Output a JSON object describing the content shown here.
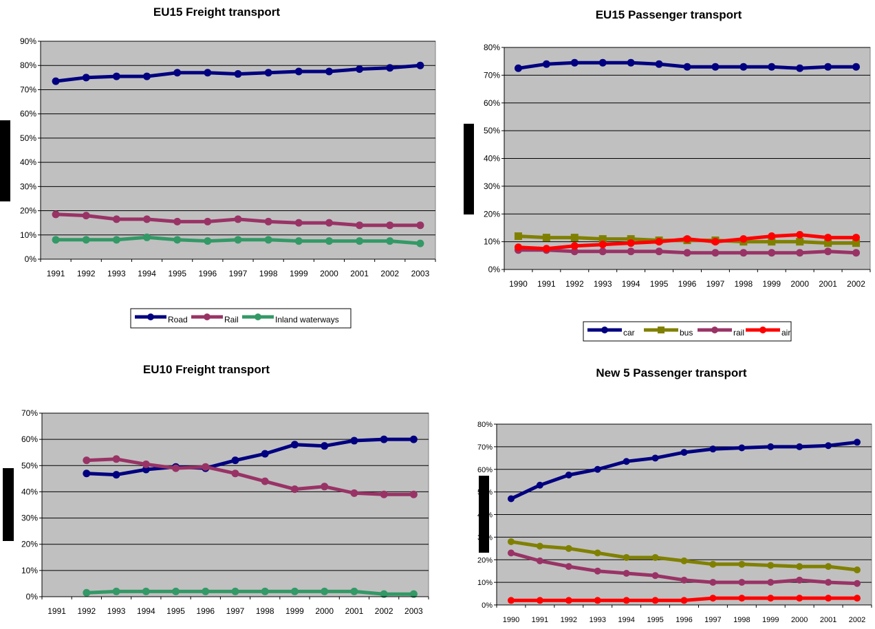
{
  "chart_data": [
    {
      "type": "line",
      "title": "EU15 Freight transport",
      "xlabel": "",
      "ylabel": "",
      "x": [
        "1991",
        "1992",
        "1993",
        "1994",
        "1995",
        "1996",
        "1997",
        "1998",
        "1999",
        "2000",
        "2001",
        "2002",
        "2003"
      ],
      "yticks": [
        "0%",
        "10%",
        "20%",
        "30%",
        "40%",
        "50%",
        "60%",
        "70%",
        "80%",
        "90%"
      ],
      "ylim": [
        0,
        90
      ],
      "grid": true,
      "legend": "bottom",
      "series": [
        {
          "name": "Road",
          "color": "#000080",
          "marker": "circle",
          "values": [
            73.5,
            75,
            75.5,
            75.5,
            77,
            77,
            76.5,
            77,
            77.5,
            77.5,
            78.5,
            79,
            80
          ]
        },
        {
          "name": "Rail",
          "color": "#993366",
          "marker": "circle",
          "values": [
            18.5,
            18,
            16.5,
            16.5,
            15.5,
            15.5,
            16.5,
            15.5,
            15,
            15,
            14,
            14,
            14
          ]
        },
        {
          "name": "Inland waterways",
          "color": "#339966",
          "marker": "circle",
          "values": [
            8,
            8,
            8,
            9,
            8,
            7.5,
            8,
            8,
            7.5,
            7.5,
            7.5,
            7.5,
            6.5
          ]
        }
      ]
    },
    {
      "type": "line",
      "title": "EU15 Passenger transport",
      "xlabel": "",
      "ylabel": "",
      "x": [
        "1990",
        "1991",
        "1992",
        "1993",
        "1994",
        "1995",
        "1996",
        "1997",
        "1998",
        "1999",
        "2000",
        "2001",
        "2002"
      ],
      "yticks": [
        "0%",
        "10%",
        "20%",
        "30%",
        "40%",
        "50%",
        "60%",
        "70%",
        "80%"
      ],
      "ylim": [
        0,
        80
      ],
      "grid": true,
      "legend": "bottom",
      "series": [
        {
          "name": "car",
          "color": "#000080",
          "marker": "circle",
          "values": [
            72.5,
            74,
            74.5,
            74.5,
            74.5,
            74,
            73,
            73,
            73,
            73,
            72.5,
            73,
            73
          ]
        },
        {
          "name": "bus",
          "color": "#808000",
          "marker": "square",
          "values": [
            12,
            11.5,
            11.5,
            11,
            11,
            10.5,
            10.5,
            10.5,
            10,
            10,
            10,
            9.5,
            9.5
          ]
        },
        {
          "name": "rail",
          "color": "#993366",
          "marker": "circle",
          "values": [
            7,
            7,
            6.5,
            6.5,
            6.5,
            6.5,
            6,
            6,
            6,
            6,
            6,
            6.5,
            6
          ]
        },
        {
          "name": "air",
          "color": "#ff0000",
          "marker": "circle",
          "values": [
            8,
            7.5,
            8.5,
            9,
            9.5,
            10,
            11,
            10,
            11,
            12,
            12.5,
            11.5,
            11.5
          ]
        }
      ]
    },
    {
      "type": "line",
      "title": "EU10 Freight transport",
      "xlabel": "",
      "ylabel": "",
      "x": [
        "1991",
        "1992",
        "1993",
        "1994",
        "1995",
        "1996",
        "1997",
        "1998",
        "1999",
        "2000",
        "2001",
        "2002",
        "2003"
      ],
      "yticks": [
        "0%",
        "10%",
        "20%",
        "30%",
        "40%",
        "50%",
        "60%",
        "70%"
      ],
      "ylim": [
        0,
        70
      ],
      "grid": true,
      "legend": "none",
      "series": [
        {
          "name": "Road",
          "color": "#000080",
          "marker": "circle",
          "values": [
            null,
            47,
            46.5,
            48.5,
            49.5,
            49,
            52,
            54.5,
            58,
            57.5,
            59.5,
            60,
            60
          ]
        },
        {
          "name": "Rail",
          "color": "#993366",
          "marker": "circle",
          "values": [
            null,
            52,
            52.5,
            50.5,
            49,
            49.5,
            47,
            44,
            41,
            42,
            39.5,
            39,
            39
          ]
        },
        {
          "name": "Inland waterways",
          "color": "#339966",
          "marker": "circle",
          "values": [
            null,
            1.5,
            2,
            2,
            2,
            2,
            2,
            2,
            2,
            2,
            2,
            1,
            1
          ]
        }
      ]
    },
    {
      "type": "line",
      "title": "New 5 Passenger transport",
      "xlabel": "",
      "ylabel": "",
      "x": [
        "1990",
        "1991",
        "1992",
        "1993",
        "1994",
        "1995",
        "1996",
        "1997",
        "1998",
        "1999",
        "2000",
        "2001",
        "2002"
      ],
      "yticks": [
        "0%",
        "10%",
        "20%",
        "30%",
        "40%",
        "50%",
        "60%",
        "70%",
        "80%"
      ],
      "ylim": [
        0,
        80
      ],
      "grid": true,
      "legend": "none",
      "series": [
        {
          "name": "car",
          "color": "#000080",
          "marker": "circle",
          "values": [
            47,
            53,
            57.5,
            60,
            63.5,
            65,
            67.5,
            69,
            69.5,
            70,
            70,
            70.5,
            72
          ]
        },
        {
          "name": "bus",
          "color": "#808000",
          "marker": "circle",
          "values": [
            28,
            26,
            25,
            23,
            21,
            21,
            19.5,
            18,
            18,
            17.5,
            17,
            17,
            15.5
          ]
        },
        {
          "name": "rail",
          "color": "#993366",
          "marker": "circle",
          "values": [
            23,
            19.5,
            17,
            15,
            14,
            13,
            11,
            10,
            10,
            10,
            11,
            10,
            9.5
          ]
        },
        {
          "name": "air",
          "color": "#ff0000",
          "marker": "circle",
          "values": [
            2,
            2,
            2,
            2,
            2,
            2,
            2,
            3,
            3,
            3,
            3,
            3,
            3
          ]
        }
      ]
    }
  ],
  "style": {
    "plot_background": "#c0c0c0",
    "gridline_color": "#000000",
    "redaction_color": "#000000"
  }
}
